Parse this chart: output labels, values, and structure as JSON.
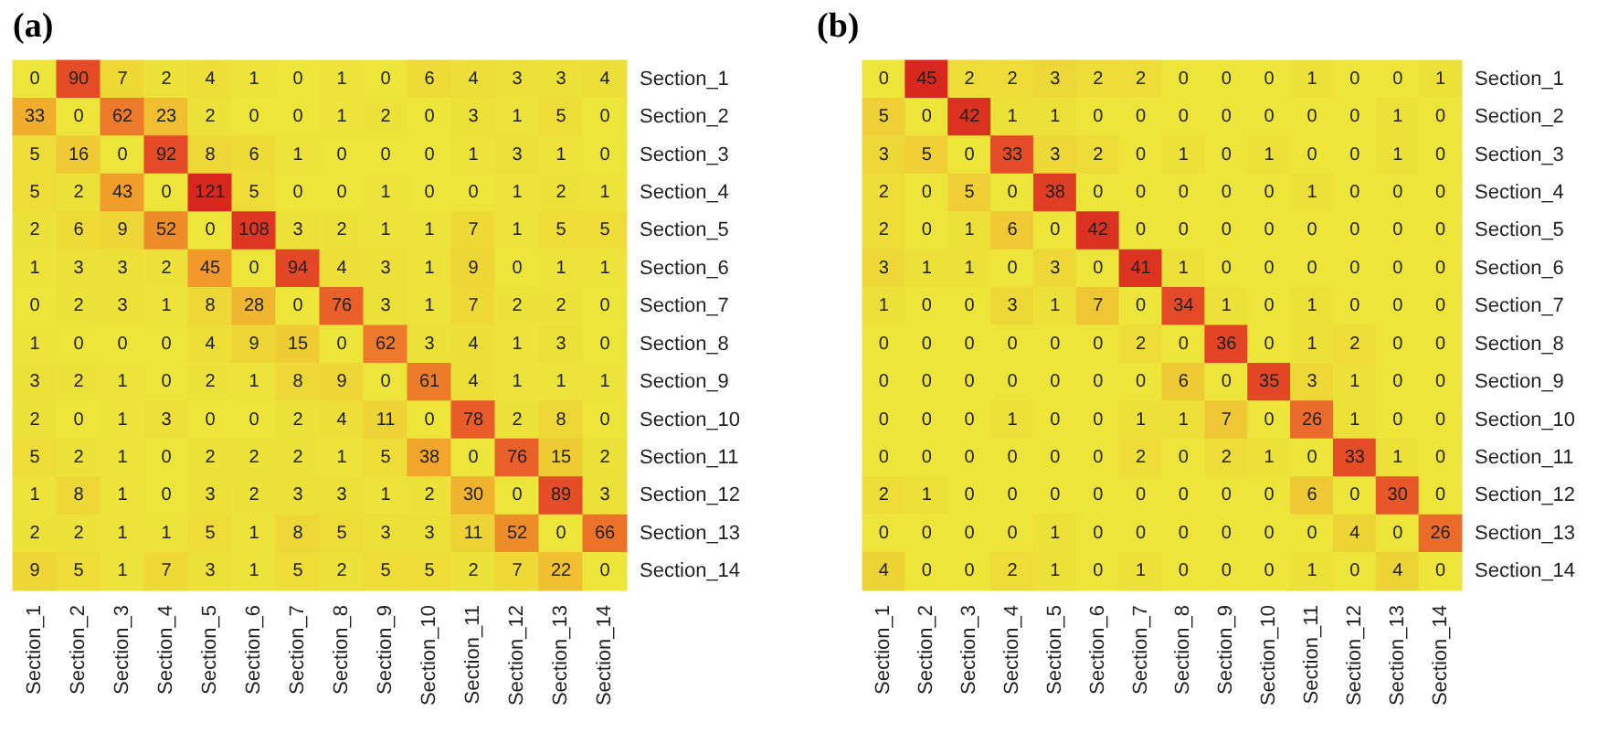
{
  "chart_data": [
    {
      "type": "heatmap",
      "title": "(a)",
      "data_labels": true,
      "categories": [
        "Section_1",
        "Section_2",
        "Section_3",
        "Section_4",
        "Section_5",
        "Section_6",
        "Section_7",
        "Section_8",
        "Section_9",
        "Section_10",
        "Section_11",
        "Section_12",
        "Section_13",
        "Section_14"
      ],
      "y_categories": [
        "Section_1",
        "Section_2",
        "Section_3",
        "Section_4",
        "Section_5",
        "Section_6",
        "Section_7",
        "Section_8",
        "Section_9",
        "Section_10",
        "Section_11",
        "Section_12",
        "Section_13",
        "Section_14"
      ],
      "cells": [
        [
          0,
          90,
          7,
          2,
          4,
          1,
          0,
          1,
          0,
          6,
          4,
          3,
          3,
          4
        ],
        [
          33,
          0,
          62,
          23,
          2,
          0,
          0,
          1,
          2,
          0,
          3,
          1,
          5,
          0
        ],
        [
          5,
          16,
          0,
          92,
          8,
          6,
          1,
          0,
          0,
          0,
          1,
          3,
          1,
          0
        ],
        [
          5,
          2,
          43,
          0,
          121,
          5,
          0,
          0,
          1,
          0,
          0,
          1,
          2,
          1
        ],
        [
          2,
          6,
          9,
          52,
          0,
          108,
          3,
          2,
          1,
          1,
          7,
          1,
          5,
          5
        ],
        [
          1,
          3,
          3,
          2,
          45,
          0,
          94,
          4,
          3,
          1,
          9,
          0,
          1,
          1
        ],
        [
          0,
          2,
          3,
          1,
          8,
          28,
          0,
          76,
          3,
          1,
          7,
          2,
          2,
          0
        ],
        [
          1,
          0,
          0,
          0,
          4,
          9,
          15,
          0,
          62,
          3,
          4,
          1,
          3,
          0
        ],
        [
          3,
          2,
          1,
          0,
          2,
          1,
          8,
          9,
          0,
          61,
          4,
          1,
          1,
          1
        ],
        [
          2,
          0,
          1,
          3,
          0,
          0,
          2,
          4,
          11,
          0,
          78,
          2,
          8,
          0
        ],
        [
          5,
          2,
          1,
          0,
          2,
          2,
          2,
          1,
          5,
          38,
          0,
          76,
          15,
          2
        ],
        [
          1,
          8,
          1,
          0,
          3,
          2,
          3,
          3,
          1,
          2,
          30,
          0,
          89,
          3
        ],
        [
          2,
          2,
          1,
          1,
          5,
          1,
          8,
          5,
          3,
          3,
          11,
          52,
          0,
          66
        ],
        [
          9,
          5,
          1,
          7,
          3,
          1,
          5,
          2,
          5,
          5,
          2,
          7,
          22,
          0
        ]
      ]
    },
    {
      "type": "heatmap",
      "title": "(b)",
      "data_labels": true,
      "categories": [
        "Section_1",
        "Section_2",
        "Section_3",
        "Section_4",
        "Section_5",
        "Section_6",
        "Section_7",
        "Section_8",
        "Section_9",
        "Section_10",
        "Section_11",
        "Section_12",
        "Section_13",
        "Section_14"
      ],
      "y_categories": [
        "Section_1",
        "Section_2",
        "Section_3",
        "Section_4",
        "Section_5",
        "Section_6",
        "Section_7",
        "Section_8",
        "Section_9",
        "Section_10",
        "Section_11",
        "Section_12",
        "Section_13",
        "Section_14"
      ],
      "cells": [
        [
          0,
          45,
          2,
          2,
          3,
          2,
          2,
          0,
          0,
          0,
          1,
          0,
          0,
          1
        ],
        [
          5,
          0,
          42,
          1,
          1,
          0,
          0,
          0,
          0,
          0,
          0,
          0,
          1,
          0
        ],
        [
          3,
          5,
          0,
          33,
          3,
          2,
          0,
          1,
          0,
          1,
          0,
          0,
          1,
          0
        ],
        [
          2,
          0,
          5,
          0,
          38,
          0,
          0,
          0,
          0,
          0,
          1,
          0,
          0,
          0
        ],
        [
          2,
          0,
          1,
          6,
          0,
          42,
          0,
          0,
          0,
          0,
          0,
          0,
          0,
          0
        ],
        [
          3,
          1,
          1,
          0,
          3,
          0,
          41,
          1,
          0,
          0,
          0,
          0,
          0,
          0
        ],
        [
          1,
          0,
          0,
          3,
          1,
          7,
          0,
          34,
          1,
          0,
          1,
          0,
          0,
          0
        ],
        [
          0,
          0,
          0,
          0,
          0,
          0,
          2,
          0,
          36,
          0,
          1,
          2,
          0,
          0
        ],
        [
          0,
          0,
          0,
          0,
          0,
          0,
          0,
          6,
          0,
          35,
          3,
          1,
          0,
          0
        ],
        [
          0,
          0,
          0,
          1,
          0,
          0,
          1,
          1,
          7,
          0,
          26,
          1,
          0,
          0
        ],
        [
          0,
          0,
          0,
          0,
          0,
          0,
          2,
          0,
          2,
          1,
          0,
          33,
          1,
          0
        ],
        [
          2,
          1,
          0,
          0,
          0,
          0,
          0,
          0,
          0,
          0,
          6,
          0,
          30,
          0
        ],
        [
          0,
          0,
          0,
          0,
          1,
          0,
          0,
          0,
          0,
          0,
          0,
          4,
          0,
          26
        ],
        [
          4,
          0,
          0,
          2,
          1,
          0,
          1,
          0,
          0,
          0,
          1,
          0,
          4,
          0
        ]
      ]
    }
  ]
}
